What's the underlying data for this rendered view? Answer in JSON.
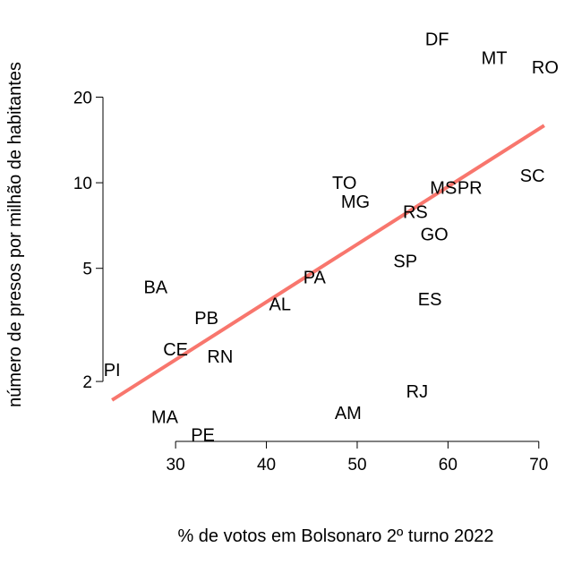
{
  "chart_data": {
    "type": "scatter",
    "title": "",
    "xlabel": "% de votos em Bolsonaro 2º turno 2022",
    "ylabel": "número de presos por milhão de habitantes",
    "xlim": [
      22,
      71.5
    ],
    "ylim": [
      1.24,
      38
    ],
    "y_scale": "log",
    "x_ticks": [
      30,
      40,
      50,
      60,
      70
    ],
    "y_ticks": [
      2,
      5,
      10,
      20
    ],
    "grid": false,
    "points": [
      {
        "label": "DF",
        "x": 58.8,
        "y": 32
      },
      {
        "label": "MT",
        "x": 65.1,
        "y": 27.5
      },
      {
        "label": "RO",
        "x": 70.7,
        "y": 25.5
      },
      {
        "label": "SC",
        "x": 69.3,
        "y": 10.6
      },
      {
        "label": "MS",
        "x": 59.5,
        "y": 9.6
      },
      {
        "label": "PR",
        "x": 62.4,
        "y": 9.6
      },
      {
        "label": "TO",
        "x": 48.6,
        "y": 10.0
      },
      {
        "label": "MG",
        "x": 49.8,
        "y": 8.6
      },
      {
        "label": "RS",
        "x": 56.4,
        "y": 7.9
      },
      {
        "label": "GO",
        "x": 58.5,
        "y": 6.6
      },
      {
        "label": "SP",
        "x": 55.3,
        "y": 5.3
      },
      {
        "label": "PA",
        "x": 45.3,
        "y": 4.65
      },
      {
        "label": "ES",
        "x": 58.0,
        "y": 3.9
      },
      {
        "label": "AL",
        "x": 41.5,
        "y": 3.75
      },
      {
        "label": "BA",
        "x": 27.8,
        "y": 4.3
      },
      {
        "label": "PB",
        "x": 33.4,
        "y": 3.35
      },
      {
        "label": "CE",
        "x": 30.0,
        "y": 2.6
      },
      {
        "label": "RN",
        "x": 34.9,
        "y": 2.45
      },
      {
        "label": "PI",
        "x": 23.0,
        "y": 2.2
      },
      {
        "label": "RJ",
        "x": 56.6,
        "y": 1.85
      },
      {
        "label": "MA",
        "x": 28.8,
        "y": 1.5
      },
      {
        "label": "AM",
        "x": 49.0,
        "y": 1.55
      },
      {
        "label": "PE",
        "x": 33.0,
        "y": 1.3
      }
    ],
    "trend_line": {
      "x": [
        23.0,
        70.6
      ],
      "y": [
        1.72,
        15.9
      ],
      "color": "#F8766D"
    }
  }
}
